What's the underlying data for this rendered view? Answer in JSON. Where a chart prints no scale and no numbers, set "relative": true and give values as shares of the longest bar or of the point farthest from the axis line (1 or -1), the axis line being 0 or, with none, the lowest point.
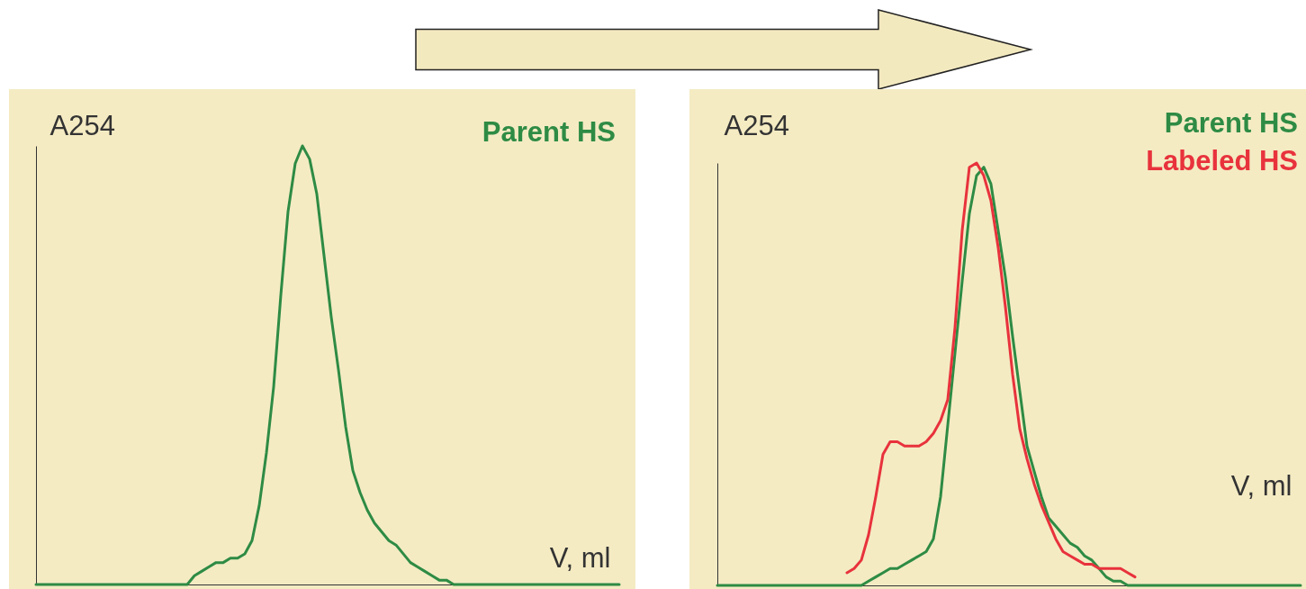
{
  "chart_data": [
    {
      "type": "line",
      "xlabel": "V, ml",
      "ylabel": "A254",
      "relative": true,
      "legend": "top right",
      "tick_labels": false,
      "categories": [
        null,
        null,
        null,
        null,
        null,
        null,
        null,
        null,
        null,
        null,
        null,
        null,
        null,
        null,
        null,
        null,
        null,
        null,
        null,
        null,
        null,
        null,
        null,
        null,
        null,
        null,
        null,
        null,
        null,
        null,
        null,
        null,
        null,
        null,
        null,
        null,
        null,
        null,
        null,
        null,
        null,
        null,
        null,
        null,
        null,
        null,
        null,
        null,
        null,
        null,
        null,
        null,
        null,
        null,
        null,
        null,
        null,
        null,
        null,
        null,
        null,
        null,
        null,
        null,
        null,
        null,
        null,
        null,
        null,
        null,
        null,
        null,
        null,
        null,
        null,
        null,
        null,
        null,
        null,
        null,
        null,
        null
      ],
      "series": [
        {
          "name": "Parent HS",
          "color": "#2e8b44",
          "values": [
            0,
            0,
            0,
            0,
            0,
            0,
            0,
            0,
            0,
            0,
            0,
            0,
            0,
            0,
            0,
            0,
            0,
            0,
            0,
            0,
            0,
            0,
            0.02,
            0.03,
            0.04,
            0.05,
            0.05,
            0.06,
            0.06,
            0.07,
            0.1,
            0.18,
            0.3,
            0.45,
            0.66,
            0.85,
            0.96,
            1,
            0.97,
            0.89,
            0.75,
            0.61,
            0.49,
            0.36,
            0.26,
            0.21,
            0.17,
            0.14,
            0.12,
            0.1,
            0.09,
            0.07,
            0.05,
            0.04,
            0.03,
            0.02,
            0.01,
            0.01,
            0,
            0,
            0,
            0,
            0,
            0,
            0,
            0,
            0,
            0,
            0,
            0,
            0,
            0,
            0,
            0,
            0,
            0,
            0,
            0,
            0,
            0,
            0,
            0
          ]
        }
      ]
    },
    {
      "type": "line",
      "xlabel": "V, ml",
      "ylabel": "A254",
      "relative": true,
      "legend": "top right",
      "tick_labels": false,
      "categories": [
        null,
        null,
        null,
        null,
        null,
        null,
        null,
        null,
        null,
        null,
        null,
        null,
        null,
        null,
        null,
        null,
        null,
        null,
        null,
        null,
        null,
        null,
        null,
        null,
        null,
        null,
        null,
        null,
        null,
        null,
        null,
        null,
        null,
        null,
        null,
        null,
        null,
        null,
        null,
        null,
        null,
        null,
        null,
        null,
        null,
        null,
        null,
        null,
        null,
        null,
        null,
        null,
        null,
        null,
        null,
        null,
        null,
        null,
        null,
        null,
        null,
        null,
        null,
        null,
        null,
        null,
        null,
        null,
        null,
        null,
        null,
        null,
        null,
        null,
        null,
        null,
        null,
        null,
        null,
        null,
        null,
        null
      ],
      "series": [
        {
          "name": "Parent HS",
          "color": "#2e8b44",
          "values": [
            0,
            0,
            0,
            0,
            0,
            0,
            0,
            0,
            0,
            0,
            0,
            0,
            0,
            0,
            0,
            0,
            0,
            0,
            0,
            0,
            0,
            0.01,
            0.02,
            0.03,
            0.04,
            0.04,
            0.05,
            0.06,
            0.07,
            0.08,
            0.11,
            0.21,
            0.38,
            0.55,
            0.72,
            0.88,
            0.97,
            0.99,
            0.95,
            0.84,
            0.73,
            0.59,
            0.46,
            0.33,
            0.27,
            0.21,
            0.16,
            0.14,
            0.12,
            0.1,
            0.09,
            0.07,
            0.06,
            0.04,
            0.02,
            0.01,
            0.01,
            0,
            0,
            0,
            0,
            0,
            0,
            0,
            0,
            0,
            0,
            0,
            0,
            0,
            0,
            0,
            0,
            0,
            0,
            0,
            0,
            0,
            0,
            0,
            0,
            0
          ]
        },
        {
          "name": "Labeled HS",
          "color": "#e8323c",
          "values": [
            null,
            null,
            null,
            null,
            null,
            null,
            null,
            null,
            null,
            null,
            null,
            null,
            null,
            null,
            null,
            null,
            null,
            null,
            0.03,
            0.04,
            0.06,
            0.12,
            0.21,
            0.31,
            0.34,
            0.34,
            0.33,
            0.33,
            0.33,
            0.34,
            0.36,
            0.39,
            0.44,
            0.61,
            0.84,
            0.99,
            1,
            0.97,
            0.91,
            0.8,
            0.66,
            0.5,
            0.37,
            0.3,
            0.24,
            0.19,
            0.15,
            0.11,
            0.08,
            0.07,
            0.06,
            0.05,
            0.05,
            0.04,
            0.04,
            0.04,
            0.04,
            0.03,
            0.02,
            null,
            null,
            null,
            null,
            null,
            null,
            null,
            null,
            null,
            null,
            null,
            null,
            null,
            null,
            null,
            null,
            null,
            null,
            null,
            null,
            null,
            null,
            null
          ]
        }
      ]
    }
  ]
}
